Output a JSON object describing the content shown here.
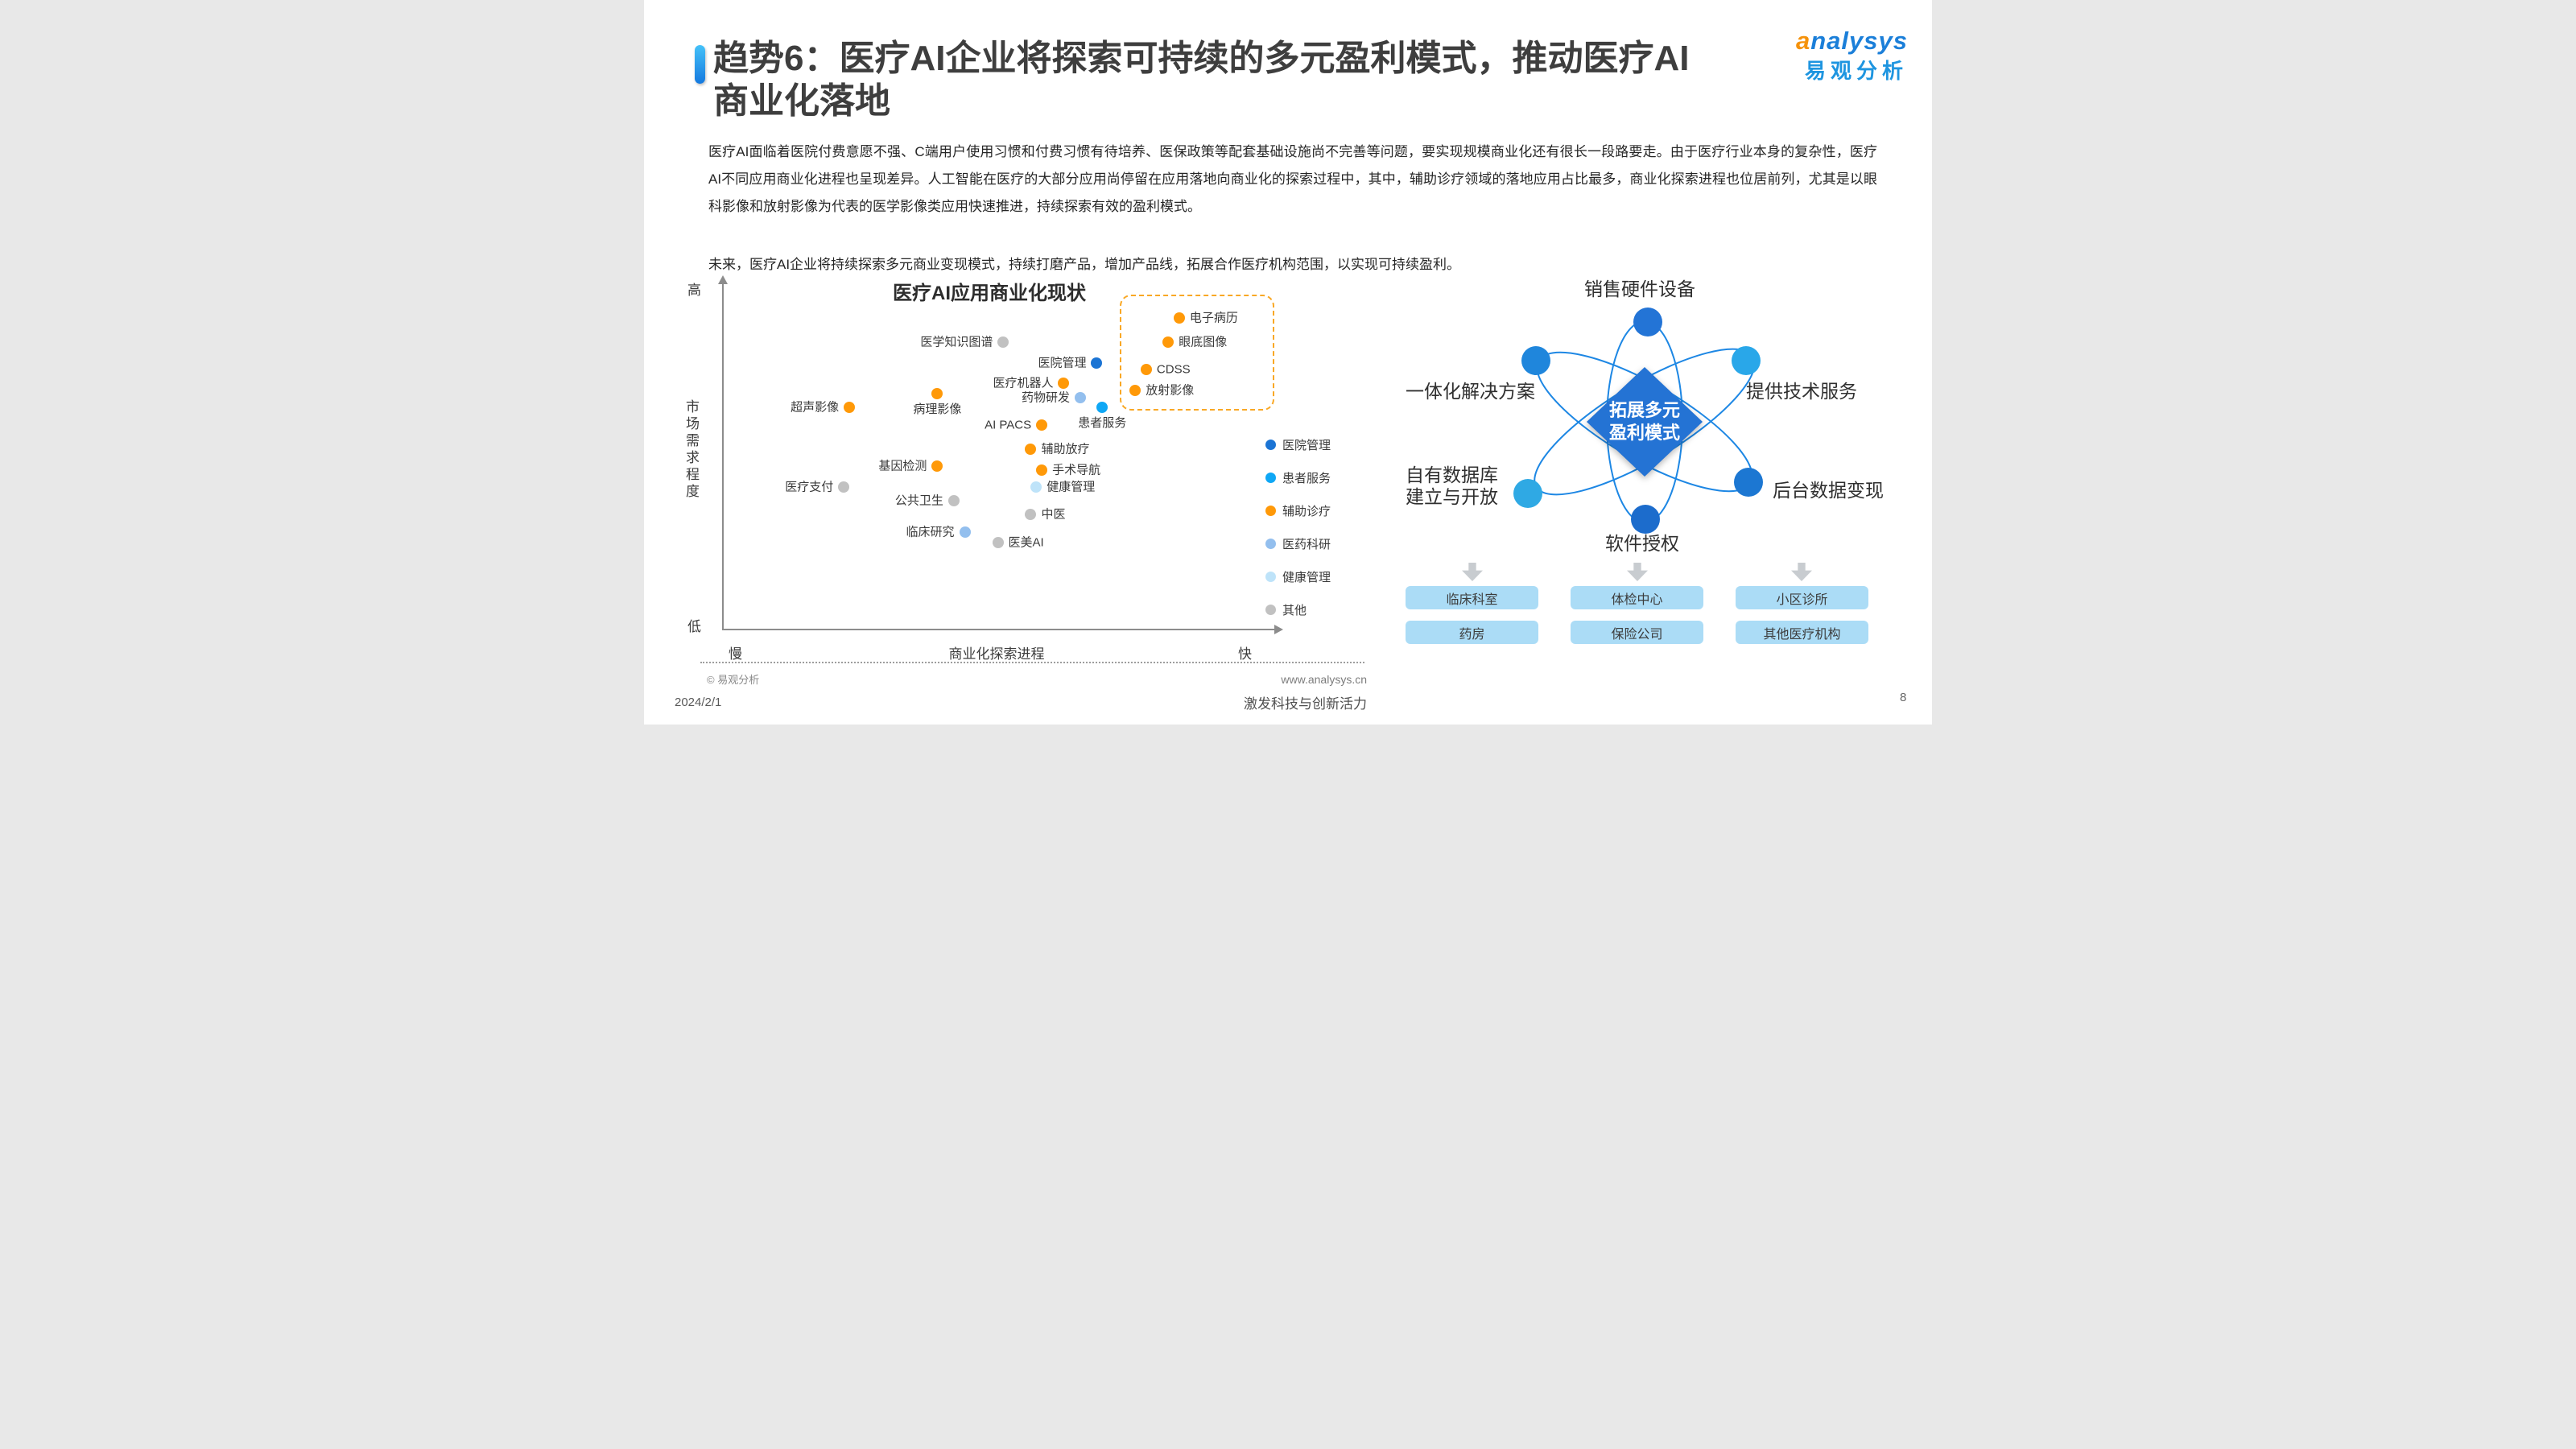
{
  "header": {
    "title_lines": [
      "趋势6：医疗AI企业将探索可持续的多元盈利模式，推动医疗AI",
      "商业化落地"
    ],
    "logo": {
      "brand_latin": "analysys",
      "brand_cn": "易观分析"
    }
  },
  "body": {
    "paragraph1": "医疗AI面临着医院付费意愿不强、C端用户使用习惯和付费习惯有待培养、医保政策等配套基础设施尚不完善等问题，要实现规模商业化还有很长一段路要走。由于医疗行业本身的复杂性，医疗AI不同应用商业化进程也呈现差异。人工智能在医疗的大部分应用尚停留在应用落地向商业化的探索过程中，其中，辅助诊疗领域的落地应用占比最多，商业化探索进程也位居前列，尤其是以眼科影像和放射影像为代表的医学影像类应用快速推进，持续探索有效的盈利模式。",
    "paragraph2": "未来，医疗AI企业将持续探索多元商业变现模式，持续打磨产品，增加产品线，拓展合作医疗机构范围，以实现可持续盈利。"
  },
  "chart_data": {
    "type": "scatter",
    "title": "医疗AI应用商业化现状",
    "xlabel": "商业化探索进程",
    "ylabel": "市场需求程度",
    "x_range_labels": {
      "min": "慢",
      "max": "快"
    },
    "y_range_labels": {
      "min": "低",
      "max": "高"
    },
    "xlim": [
      0,
      100
    ],
    "ylim": [
      0,
      100
    ],
    "grid": false,
    "legend_position": "right-inside",
    "legend": [
      {
        "key": "hospital",
        "label": "医院管理",
        "color": "#1b74d4"
      },
      {
        "key": "patient",
        "label": "患者服务",
        "color": "#0fa7f5"
      },
      {
        "key": "assist",
        "label": "辅助诊疗",
        "color": "#ff9908"
      },
      {
        "key": "research",
        "label": "医药科研",
        "color": "#93bfee"
      },
      {
        "key": "health",
        "label": "健康管理",
        "color": "#bee3f9"
      },
      {
        "key": "other",
        "label": "其他",
        "color": "#c1c1c1"
      }
    ],
    "points": [
      {
        "label": "医学知识图谱",
        "category": "other",
        "x": 51,
        "y": 83,
        "label_pos": "left"
      },
      {
        "label": "医院管理",
        "category": "hospital",
        "x": 68,
        "y": 77,
        "label_pos": "left"
      },
      {
        "label": "医疗机器人",
        "category": "assist",
        "x": 62,
        "y": 71,
        "label_pos": "left"
      },
      {
        "label": "药物研发",
        "category": "research",
        "x": 65,
        "y": 67,
        "label_pos": "left"
      },
      {
        "label": "患者服务",
        "category": "patient",
        "x": 69,
        "y": 64,
        "label_pos": "below"
      },
      {
        "label": "超声影像",
        "category": "assist",
        "x": 23,
        "y": 64,
        "label_pos": "left"
      },
      {
        "label": "病理影像",
        "category": "assist",
        "x": 39,
        "y": 68,
        "label_pos": "below"
      },
      {
        "label": "AI PACS",
        "category": "assist",
        "x": 58,
        "y": 59,
        "label_pos": "left"
      },
      {
        "label": "辅助放疗",
        "category": "assist",
        "x": 56,
        "y": 52,
        "label_pos": "right"
      },
      {
        "label": "基因检测",
        "category": "assist",
        "x": 39,
        "y": 47,
        "label_pos": "left"
      },
      {
        "label": "手术导航",
        "category": "assist",
        "x": 58,
        "y": 46,
        "label_pos": "right"
      },
      {
        "label": "医疗支付",
        "category": "other",
        "x": 22,
        "y": 41,
        "label_pos": "left"
      },
      {
        "label": "健康管理",
        "category": "health",
        "x": 57,
        "y": 41,
        "label_pos": "right"
      },
      {
        "label": "公共卫生",
        "category": "other",
        "x": 42,
        "y": 37,
        "label_pos": "left"
      },
      {
        "label": "中医",
        "category": "other",
        "x": 56,
        "y": 33,
        "label_pos": "right"
      },
      {
        "label": "临床研究",
        "category": "research",
        "x": 44,
        "y": 28,
        "label_pos": "left"
      },
      {
        "label": "医美AI",
        "category": "other",
        "x": 50,
        "y": 25,
        "label_pos": "right"
      },
      {
        "label": "电子病历",
        "category": "assist",
        "x": 83,
        "y": 90,
        "label_pos": "right"
      },
      {
        "label": "眼底图像",
        "category": "assist",
        "x": 81,
        "y": 83,
        "label_pos": "right"
      },
      {
        "label": "CDSS",
        "category": "assist",
        "x": 77,
        "y": 75,
        "label_pos": "right"
      },
      {
        "label": "放射影像",
        "category": "assist",
        "x": 75,
        "y": 69,
        "label_pos": "right"
      }
    ],
    "highlight_box": {
      "border_color": "#f9a825",
      "style": "dashed",
      "contains": [
        "电子病历",
        "眼底图像",
        "CDSS",
        "放射影像"
      ]
    }
  },
  "diagram": {
    "center": {
      "line1": "拓展多元",
      "line2": "盈利模式",
      "color": "#2473d4"
    },
    "orbit_color": "#1d87e4",
    "nodes": [
      {
        "label": "销售硬件设备",
        "color": "#2374d6"
      },
      {
        "label": "一体化解决方案",
        "color": "#1f86dc"
      },
      {
        "label": "提供技术服务",
        "color": "#29a7e9"
      },
      {
        "label": "自有数据库\n建立与开放",
        "color": "#2fa9e4"
      },
      {
        "label": "后台数据变现",
        "color": "#1c77d2"
      },
      {
        "label": "软件授权",
        "color": "#1c6ccc"
      }
    ],
    "channels": [
      [
        "临床科室",
        "体检中心",
        "小区诊所"
      ],
      [
        "药房",
        "保险公司",
        "其他医疗机构"
      ]
    ]
  },
  "footer": {
    "copyright": "© 易观分析",
    "website": "www.analysys.cn",
    "date": "2024/2/1",
    "slogan": "激发科技与创新活力",
    "page_number": "8"
  }
}
